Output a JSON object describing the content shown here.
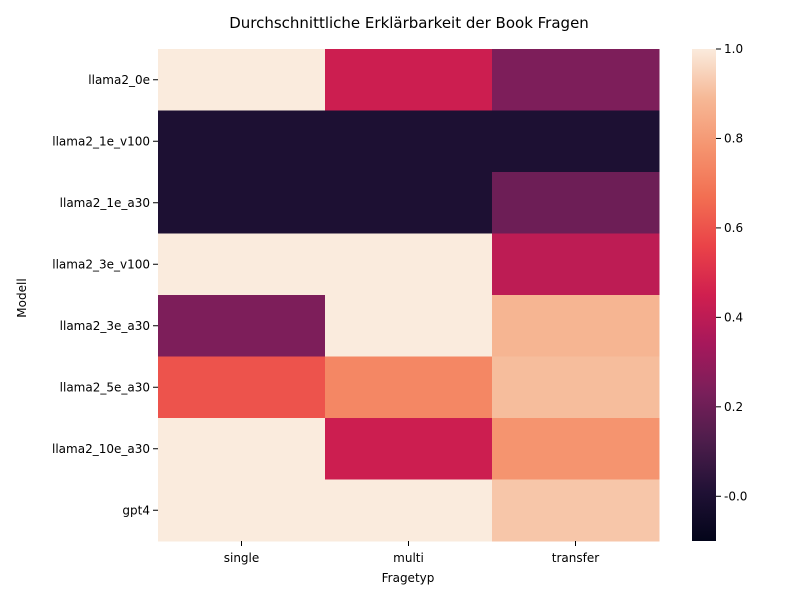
{
  "chart_data": {
    "type": "heatmap",
    "title": "Durchschnittliche Erklärbarkeit der Book Fragen",
    "xlabel": "Fragetyp",
    "ylabel": "Modell",
    "x_categories": [
      "single",
      "multi",
      "transfer"
    ],
    "y_categories": [
      "llama2_0e",
      "llama2_1e_v100",
      "llama2_1e_a30",
      "llama2_3e_v100",
      "llama2_3e_a30",
      "llama2_5e_a30",
      "llama2_10e_a30",
      "gpt4"
    ],
    "values": [
      [
        1.0,
        0.44,
        0.24
      ],
      [
        0.0,
        0.0,
        0.0
      ],
      [
        0.0,
        0.0,
        0.2
      ],
      [
        1.0,
        1.0,
        0.4
      ],
      [
        0.24,
        1.0,
        0.88
      ],
      [
        0.6,
        0.74,
        0.9
      ],
      [
        1.0,
        0.44,
        0.78
      ],
      [
        1.0,
        1.0,
        0.92
      ]
    ],
    "colorbar": {
      "range": [
        -0.1,
        1.0
      ],
      "ticks": [
        "-0.0",
        "0.2",
        "0.4",
        "0.6",
        "0.8",
        "1.0"
      ],
      "colormap": "rocket"
    },
    "grid": false,
    "legend": "colorbar-right"
  }
}
